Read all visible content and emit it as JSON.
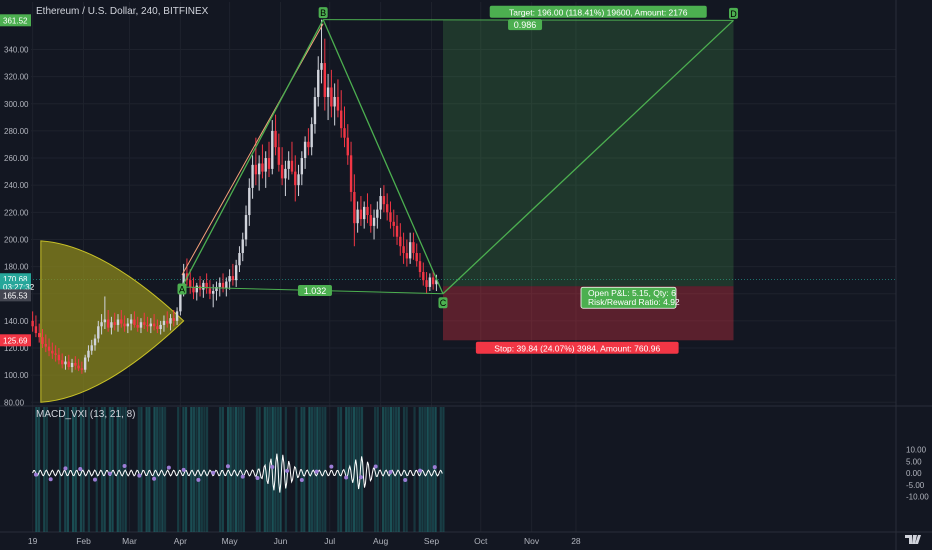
{
  "header": {
    "title": "Ethereum / U.S. Dollar, 240, BITFINEX"
  },
  "indicator": {
    "label": "MACD_VXI (13, 21, 8)"
  },
  "chart_data": {
    "type": "candlestick",
    "price_axis": {
      "range": [
        78,
        375
      ],
      "ticks": [
        80,
        100,
        120,
        140,
        160,
        180,
        200,
        220,
        240,
        260,
        280,
        300,
        320,
        340
      ],
      "tick_labels": [
        "80.00",
        "100.00",
        "120.00",
        "140.00",
        "160.00",
        "180.00",
        "200.00",
        "220.00",
        "240.00",
        "260.00",
        "280.00",
        "300.00",
        "320.00",
        "340.00"
      ],
      "badges": [
        {
          "label": "361.52",
          "value": 361.52,
          "color": "#4caf50"
        },
        {
          "label": "170.68",
          "value": 170.68,
          "color": "#26a69a"
        },
        {
          "label": "03:27:32",
          "value": 164.9,
          "color": "#26a69a"
        },
        {
          "label": "165.53",
          "value": 158.8,
          "color": "#434651"
        },
        {
          "label": "125.69",
          "value": 125.69,
          "color": "#f23645"
        }
      ]
    },
    "time_axis": {
      "labels": [
        "19",
        "Feb",
        "Mar",
        "Apr",
        "May",
        "Jun",
        "Jul",
        "Aug",
        "Sep",
        "Oct",
        "Nov",
        "28"
      ],
      "label_days": [
        0,
        31,
        59,
        90,
        120,
        151,
        181,
        212,
        243,
        273,
        304,
        331
      ],
      "range_days": [
        -1,
        526
      ]
    },
    "pattern": {
      "points": [
        {
          "label": "A",
          "day": 91,
          "price": 165
        },
        {
          "label": "B",
          "day": 177,
          "price": 362
        },
        {
          "label": "C",
          "day": 250,
          "price": 160
        },
        {
          "label": "D",
          "day": 427,
          "price": 361.5
        }
      ],
      "ratio_labels": [
        {
          "text": "1.032",
          "day": 172,
          "price": 162
        },
        {
          "text": "0.986",
          "day": 300,
          "price": 358
        }
      ]
    },
    "position": {
      "entry": 165.53,
      "target": 361.52,
      "stop": 125.69,
      "start_day": 250,
      "end_day": 427,
      "target_label": "Target: 196.00 (118.41%) 19600, Amount: 2176",
      "stop_label": "Stop: 39.84 (24.07%) 3984, Amount: 760.96",
      "pnl_label": "Open P&L: 5.15, Qty: 6",
      "rr_label": "Risk/Reward Ratio: 4.92"
    },
    "candles": [
      {
        "day": 0,
        "o": 140,
        "h": 147,
        "l": 132,
        "c": 136
      },
      {
        "day": 2,
        "o": 136,
        "h": 144,
        "l": 128,
        "c": 131
      },
      {
        "day": 4,
        "o": 131,
        "h": 138,
        "l": 124,
        "c": 128
      },
      {
        "day": 6,
        "o": 128,
        "h": 134,
        "l": 120,
        "c": 123
      },
      {
        "day": 8,
        "o": 123,
        "h": 130,
        "l": 117,
        "c": 121
      },
      {
        "day": 10,
        "o": 121,
        "h": 127,
        "l": 114,
        "c": 118
      },
      {
        "day": 12,
        "o": 118,
        "h": 124,
        "l": 112,
        "c": 116
      },
      {
        "day": 14,
        "o": 116,
        "h": 122,
        "l": 110,
        "c": 115
      },
      {
        "day": 16,
        "o": 115,
        "h": 120,
        "l": 108,
        "c": 111
      },
      {
        "day": 18,
        "o": 111,
        "h": 116,
        "l": 105,
        "c": 108
      },
      {
        "day": 20,
        "o": 108,
        "h": 114,
        "l": 104,
        "c": 110
      },
      {
        "day": 22,
        "o": 110,
        "h": 115,
        "l": 104,
        "c": 106
      },
      {
        "day": 24,
        "o": 106,
        "h": 112,
        "l": 102,
        "c": 109
      },
      {
        "day": 26,
        "o": 109,
        "h": 114,
        "l": 104,
        "c": 107
      },
      {
        "day": 28,
        "o": 107,
        "h": 112,
        "l": 103,
        "c": 105
      },
      {
        "day": 30,
        "o": 105,
        "h": 110,
        "l": 101,
        "c": 104
      },
      {
        "day": 32,
        "o": 104,
        "h": 115,
        "l": 102,
        "c": 113
      },
      {
        "day": 34,
        "o": 113,
        "h": 122,
        "l": 110,
        "c": 118
      },
      {
        "day": 36,
        "o": 118,
        "h": 126,
        "l": 115,
        "c": 122
      },
      {
        "day": 38,
        "o": 122,
        "h": 130,
        "l": 118,
        "c": 127
      },
      {
        "day": 40,
        "o": 127,
        "h": 140,
        "l": 124,
        "c": 136
      },
      {
        "day": 42,
        "o": 136,
        "h": 145,
        "l": 130,
        "c": 139
      },
      {
        "day": 44,
        "o": 139,
        "h": 158,
        "l": 134,
        "c": 141
      },
      {
        "day": 46,
        "o": 141,
        "h": 148,
        "l": 132,
        "c": 135
      },
      {
        "day": 48,
        "o": 135,
        "h": 143,
        "l": 130,
        "c": 139
      },
      {
        "day": 50,
        "o": 139,
        "h": 146,
        "l": 133,
        "c": 137
      },
      {
        "day": 52,
        "o": 137,
        "h": 145,
        "l": 132,
        "c": 141
      },
      {
        "day": 54,
        "o": 141,
        "h": 148,
        "l": 135,
        "c": 138
      },
      {
        "day": 56,
        "o": 138,
        "h": 144,
        "l": 132,
        "c": 136
      },
      {
        "day": 58,
        "o": 136,
        "h": 142,
        "l": 131,
        "c": 138
      },
      {
        "day": 60,
        "o": 138,
        "h": 145,
        "l": 133,
        "c": 141
      },
      {
        "day": 62,
        "o": 141,
        "h": 147,
        "l": 135,
        "c": 137
      },
      {
        "day": 64,
        "o": 137,
        "h": 143,
        "l": 132,
        "c": 135
      },
      {
        "day": 66,
        "o": 135,
        "h": 142,
        "l": 131,
        "c": 139
      },
      {
        "day": 68,
        "o": 139,
        "h": 146,
        "l": 134,
        "c": 137
      },
      {
        "day": 70,
        "o": 137,
        "h": 143,
        "l": 132,
        "c": 136
      },
      {
        "day": 72,
        "o": 136,
        "h": 142,
        "l": 131,
        "c": 138
      },
      {
        "day": 74,
        "o": 138,
        "h": 145,
        "l": 133,
        "c": 136
      },
      {
        "day": 76,
        "o": 136,
        "h": 141,
        "l": 131,
        "c": 134
      },
      {
        "day": 78,
        "o": 134,
        "h": 140,
        "l": 130,
        "c": 137
      },
      {
        "day": 80,
        "o": 137,
        "h": 144,
        "l": 132,
        "c": 140
      },
      {
        "day": 82,
        "o": 140,
        "h": 147,
        "l": 135,
        "c": 138
      },
      {
        "day": 84,
        "o": 138,
        "h": 145,
        "l": 133,
        "c": 142
      },
      {
        "day": 86,
        "o": 142,
        "h": 148,
        "l": 136,
        "c": 140
      },
      {
        "day": 88,
        "o": 140,
        "h": 150,
        "l": 137,
        "c": 147
      },
      {
        "day": 90,
        "o": 147,
        "h": 165,
        "l": 144,
        "c": 162
      },
      {
        "day": 92,
        "o": 162,
        "h": 182,
        "l": 158,
        "c": 175
      },
      {
        "day": 94,
        "o": 175,
        "h": 186,
        "l": 166,
        "c": 170
      },
      {
        "day": 96,
        "o": 170,
        "h": 178,
        "l": 160,
        "c": 165
      },
      {
        "day": 98,
        "o": 165,
        "h": 172,
        "l": 156,
        "c": 161
      },
      {
        "day": 100,
        "o": 161,
        "h": 168,
        "l": 155,
        "c": 166
      },
      {
        "day": 102,
        "o": 166,
        "h": 173,
        "l": 158,
        "c": 163
      },
      {
        "day": 104,
        "o": 163,
        "h": 170,
        "l": 157,
        "c": 168
      },
      {
        "day": 106,
        "o": 168,
        "h": 175,
        "l": 160,
        "c": 164
      },
      {
        "day": 108,
        "o": 164,
        "h": 170,
        "l": 156,
        "c": 160
      },
      {
        "day": 110,
        "o": 160,
        "h": 167,
        "l": 150,
        "c": 162
      },
      {
        "day": 112,
        "o": 162,
        "h": 169,
        "l": 155,
        "c": 165
      },
      {
        "day": 114,
        "o": 165,
        "h": 172,
        "l": 158,
        "c": 168
      },
      {
        "day": 116,
        "o": 168,
        "h": 175,
        "l": 161,
        "c": 164
      },
      {
        "day": 118,
        "o": 164,
        "h": 172,
        "l": 158,
        "c": 169
      },
      {
        "day": 120,
        "o": 169,
        "h": 178,
        "l": 163,
        "c": 173
      },
      {
        "day": 122,
        "o": 173,
        "h": 182,
        "l": 166,
        "c": 170
      },
      {
        "day": 124,
        "o": 170,
        "h": 185,
        "l": 165,
        "c": 181
      },
      {
        "day": 126,
        "o": 181,
        "h": 195,
        "l": 176,
        "c": 190
      },
      {
        "day": 128,
        "o": 190,
        "h": 205,
        "l": 184,
        "c": 200
      },
      {
        "day": 130,
        "o": 200,
        "h": 225,
        "l": 195,
        "c": 218
      },
      {
        "day": 132,
        "o": 218,
        "h": 245,
        "l": 210,
        "c": 238
      },
      {
        "day": 134,
        "o": 238,
        "h": 262,
        "l": 230,
        "c": 255
      },
      {
        "day": 136,
        "o": 255,
        "h": 275,
        "l": 240,
        "c": 248
      },
      {
        "day": 138,
        "o": 248,
        "h": 262,
        "l": 236,
        "c": 256
      },
      {
        "day": 140,
        "o": 256,
        "h": 270,
        "l": 245,
        "c": 250
      },
      {
        "day": 142,
        "o": 250,
        "h": 265,
        "l": 238,
        "c": 260
      },
      {
        "day": 144,
        "o": 260,
        "h": 272,
        "l": 246,
        "c": 252
      },
      {
        "day": 146,
        "o": 252,
        "h": 288,
        "l": 248,
        "c": 280
      },
      {
        "day": 148,
        "o": 280,
        "h": 292,
        "l": 262,
        "c": 268
      },
      {
        "day": 150,
        "o": 268,
        "h": 278,
        "l": 250,
        "c": 255
      },
      {
        "day": 152,
        "o": 255,
        "h": 268,
        "l": 240,
        "c": 245
      },
      {
        "day": 154,
        "o": 245,
        "h": 258,
        "l": 232,
        "c": 252
      },
      {
        "day": 156,
        "o": 252,
        "h": 265,
        "l": 244,
        "c": 258
      },
      {
        "day": 158,
        "o": 258,
        "h": 272,
        "l": 248,
        "c": 250
      },
      {
        "day": 160,
        "o": 250,
        "h": 262,
        "l": 228,
        "c": 240
      },
      {
        "day": 162,
        "o": 240,
        "h": 255,
        "l": 232,
        "c": 248
      },
      {
        "day": 164,
        "o": 248,
        "h": 265,
        "l": 240,
        "c": 260
      },
      {
        "day": 166,
        "o": 260,
        "h": 276,
        "l": 252,
        "c": 272
      },
      {
        "day": 168,
        "o": 272,
        "h": 282,
        "l": 262,
        "c": 268
      },
      {
        "day": 170,
        "o": 268,
        "h": 290,
        "l": 262,
        "c": 285
      },
      {
        "day": 172,
        "o": 285,
        "h": 312,
        "l": 278,
        "c": 305
      },
      {
        "day": 174,
        "o": 305,
        "h": 335,
        "l": 298,
        "c": 325
      },
      {
        "day": 176,
        "o": 325,
        "h": 362,
        "l": 315,
        "c": 330
      },
      {
        "day": 178,
        "o": 330,
        "h": 348,
        "l": 295,
        "c": 305
      },
      {
        "day": 180,
        "o": 305,
        "h": 322,
        "l": 288,
        "c": 312
      },
      {
        "day": 182,
        "o": 312,
        "h": 325,
        "l": 290,
        "c": 298
      },
      {
        "day": 184,
        "o": 298,
        "h": 315,
        "l": 284,
        "c": 305
      },
      {
        "day": 186,
        "o": 305,
        "h": 318,
        "l": 290,
        "c": 295
      },
      {
        "day": 188,
        "o": 295,
        "h": 310,
        "l": 275,
        "c": 282
      },
      {
        "day": 190,
        "o": 282,
        "h": 298,
        "l": 268,
        "c": 275
      },
      {
        "day": 192,
        "o": 275,
        "h": 285,
        "l": 255,
        "c": 262
      },
      {
        "day": 194,
        "o": 262,
        "h": 272,
        "l": 228,
        "c": 235
      },
      {
        "day": 196,
        "o": 235,
        "h": 248,
        "l": 195,
        "c": 212
      },
      {
        "day": 198,
        "o": 212,
        "h": 228,
        "l": 205,
        "c": 222
      },
      {
        "day": 200,
        "o": 222,
        "h": 232,
        "l": 210,
        "c": 215
      },
      {
        "day": 202,
        "o": 215,
        "h": 228,
        "l": 208,
        "c": 224
      },
      {
        "day": 204,
        "o": 224,
        "h": 234,
        "l": 212,
        "c": 218
      },
      {
        "day": 206,
        "o": 218,
        "h": 226,
        "l": 205,
        "c": 210
      },
      {
        "day": 208,
        "o": 210,
        "h": 222,
        "l": 200,
        "c": 216
      },
      {
        "day": 210,
        "o": 216,
        "h": 228,
        "l": 208,
        "c": 222
      },
      {
        "day": 212,
        "o": 222,
        "h": 238,
        "l": 215,
        "c": 232
      },
      {
        "day": 214,
        "o": 232,
        "h": 240,
        "l": 220,
        "c": 226
      },
      {
        "day": 216,
        "o": 226,
        "h": 234,
        "l": 214,
        "c": 220
      },
      {
        "day": 218,
        "o": 220,
        "h": 228,
        "l": 208,
        "c": 213
      },
      {
        "day": 220,
        "o": 213,
        "h": 222,
        "l": 202,
        "c": 210
      },
      {
        "day": 222,
        "o": 210,
        "h": 218,
        "l": 196,
        "c": 202
      },
      {
        "day": 224,
        "o": 202,
        "h": 212,
        "l": 188,
        "c": 195
      },
      {
        "day": 226,
        "o": 195,
        "h": 205,
        "l": 182,
        "c": 190
      },
      {
        "day": 228,
        "o": 190,
        "h": 200,
        "l": 180,
        "c": 186
      },
      {
        "day": 230,
        "o": 186,
        "h": 205,
        "l": 182,
        "c": 198
      },
      {
        "day": 232,
        "o": 198,
        "h": 205,
        "l": 185,
        "c": 190
      },
      {
        "day": 234,
        "o": 190,
        "h": 197,
        "l": 180,
        "c": 184
      },
      {
        "day": 236,
        "o": 184,
        "h": 190,
        "l": 172,
        "c": 176
      },
      {
        "day": 238,
        "o": 176,
        "h": 183,
        "l": 166,
        "c": 170
      },
      {
        "day": 240,
        "o": 170,
        "h": 176,
        "l": 160,
        "c": 165
      },
      {
        "day": 242,
        "o": 165,
        "h": 175,
        "l": 162,
        "c": 172
      },
      {
        "day": 244,
        "o": 172,
        "h": 177,
        "l": 163,
        "c": 167
      },
      {
        "day": 246,
        "o": 167,
        "h": 174,
        "l": 162,
        "c": 170
      }
    ]
  }
}
